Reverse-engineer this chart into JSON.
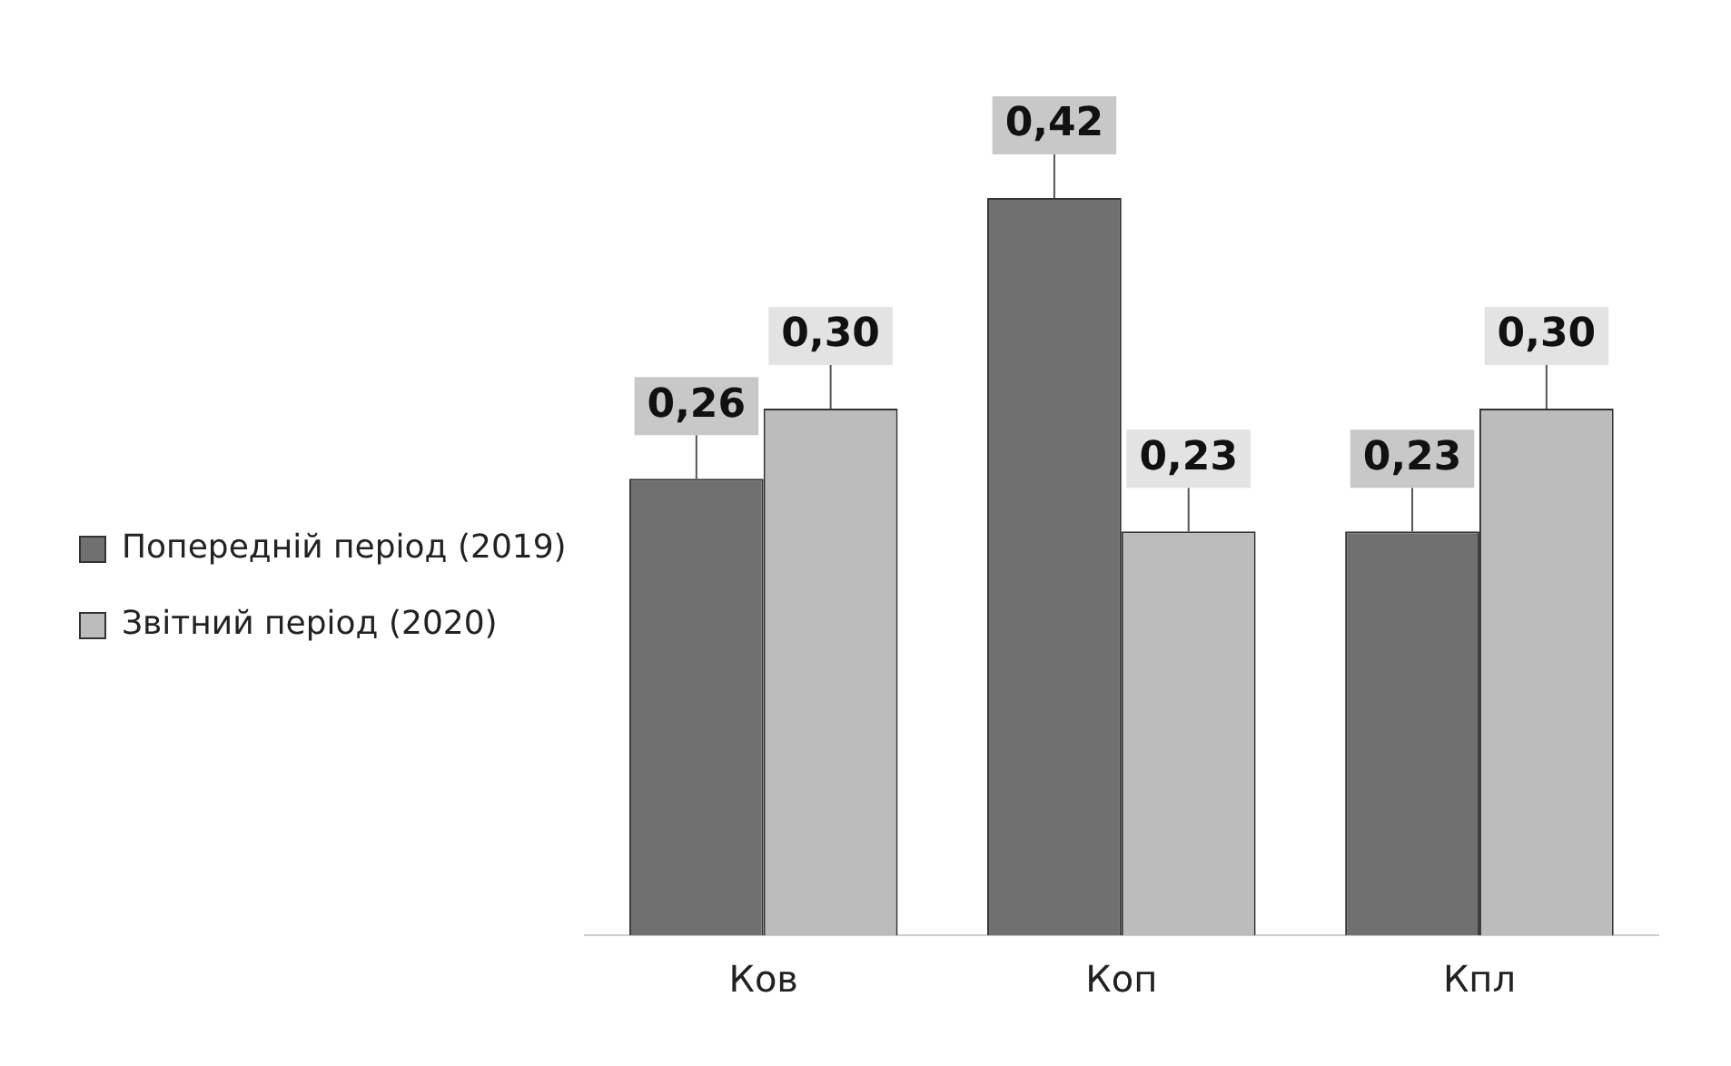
{
  "chart_data": {
    "type": "bar",
    "categories": [
      "Ков",
      "Коп",
      "Кпл"
    ],
    "series": [
      {
        "name": "Попередній період (2019)",
        "color": "#707070",
        "values": [
          0.26,
          0.42,
          0.23
        ],
        "value_labels": [
          "0,26",
          "0,42",
          "0,23"
        ]
      },
      {
        "name": "Звітний період (2020)",
        "color": "#bcbcbc",
        "values": [
          0.3,
          0.23,
          0.3
        ],
        "value_labels": [
          "0,30",
          "0,23",
          "0,30"
        ]
      }
    ],
    "legend": "left",
    "grid": false
  }
}
